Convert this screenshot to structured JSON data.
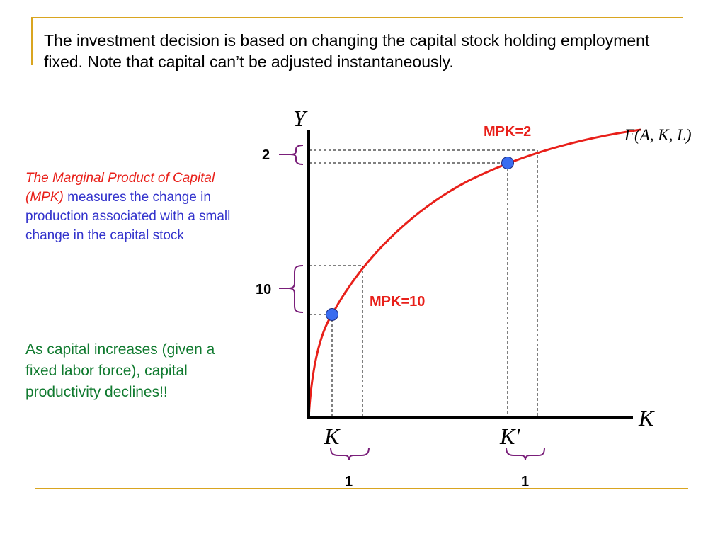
{
  "title": "The investment decision is based on changing the capital stock holding employment fixed. Note that capital can’t be adjusted instantaneously.",
  "definition": {
    "term": "The Marginal Product of Capital (MPK)",
    "rest": " measures the change in production associated with a small change in the capital stock"
  },
  "conclusion": "As capital increases (given a fixed labor force), capital productivity declines!!",
  "diagram": {
    "y_axis_label": "Y",
    "x_axis_label": "K",
    "curve_label": "F(A, K, L)",
    "point_low_label": "K",
    "point_high_label": "K'",
    "mpk_high_label": "MPK=10",
    "mpk_low_label": "MPK=2",
    "delta_y_high": "10",
    "delta_y_low": "2",
    "delta_k_left": "1",
    "delta_k_right": "1"
  },
  "colors": {
    "curve": "#e8201a",
    "points": "#3a6df0",
    "braces": "#7a1f7a",
    "frame": "#d9a520",
    "definition_text": "#3333cc",
    "conclusion_text": "#107a2f"
  }
}
